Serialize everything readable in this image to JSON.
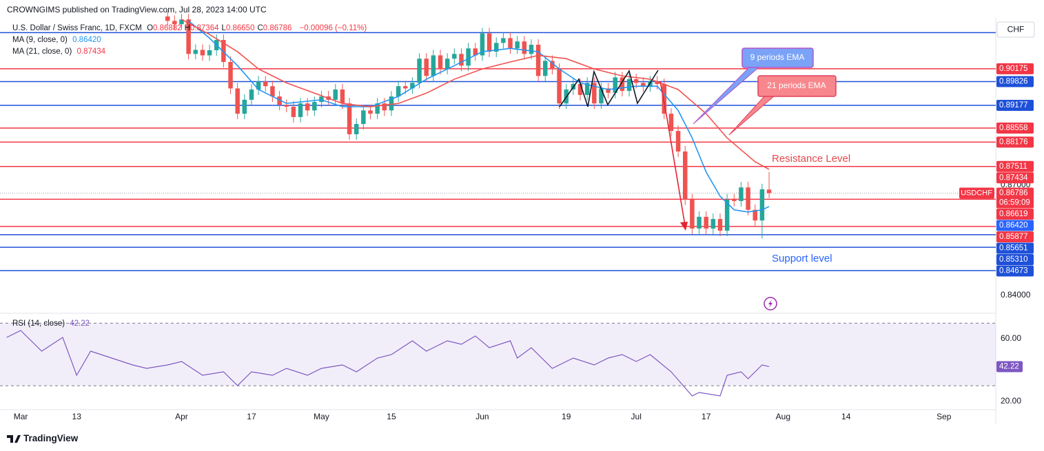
{
  "header": {
    "publisher": "CROWNGIMS published on TradingView.com, Jul 28, 2023 14:00 UTC",
    "currency": "CHF"
  },
  "chart_data": [
    {
      "type": "candlestick",
      "title": "U.S. Dollar / Swiss Franc, 1D, FXCM",
      "ohlc_legend": [
        {
          "key": "O",
          "value": "0.86882"
        },
        {
          "key": "H",
          "value": "0.87364"
        },
        {
          "key": "L",
          "value": "0.86650"
        },
        {
          "key": "C",
          "value": "0.86786"
        }
      ],
      "change": "−0.00096 (−0.11%)",
      "up_color": "#26a69a",
      "down_color": "#ef5350",
      "xlim": [
        -2.96,
        139.41
      ],
      "ylim": [
        0.8351,
        0.9158
      ],
      "yticks": [
        {
          "value": 0.84,
          "label": "0.84000"
        },
        {
          "value": 0.87,
          "label": "0.87000"
        }
      ],
      "xticks": [
        {
          "value": 0,
          "label": "Mar"
        },
        {
          "value": 8,
          "label": "13"
        },
        {
          "value": 23,
          "label": "Apr"
        },
        {
          "value": 33,
          "label": "17"
        },
        {
          "value": 43,
          "label": "May"
        },
        {
          "value": 53,
          "label": "15"
        },
        {
          "value": 66,
          "label": "Jun"
        },
        {
          "value": 78,
          "label": "19"
        },
        {
          "value": 88,
          "label": "Jul"
        },
        {
          "value": 98,
          "label": "17"
        },
        {
          "value": 109,
          "label": "Aug"
        },
        {
          "value": 118,
          "label": "14"
        },
        {
          "value": 132,
          "label": "Sep"
        }
      ],
      "x": [
        21,
        22,
        23,
        24,
        25,
        26,
        27,
        28,
        29,
        30,
        31,
        32,
        33,
        34,
        35,
        36,
        37,
        38,
        39,
        40,
        41,
        42,
        43,
        44,
        45,
        46,
        47,
        48,
        49,
        50,
        51,
        52,
        53,
        54,
        55,
        56,
        57,
        58,
        59,
        60,
        61,
        62,
        63,
        64,
        65,
        66,
        67,
        68,
        69,
        70,
        71,
        72,
        73,
        74,
        75,
        76,
        77,
        78,
        79,
        80,
        81,
        82,
        83,
        84,
        85,
        86,
        87,
        88,
        89,
        90,
        91,
        92,
        93,
        94,
        95,
        96,
        97,
        98,
        99,
        100,
        101,
        102,
        103,
        104,
        105,
        106,
        107
      ],
      "open": [
        0.916,
        0.9148,
        0.9139,
        0.9152,
        0.9058,
        0.9069,
        0.9054,
        0.9068,
        0.9096,
        0.9036,
        0.8964,
        0.8895,
        0.8933,
        0.8961,
        0.8983,
        0.897,
        0.8942,
        0.8919,
        0.8914,
        0.8886,
        0.8923,
        0.8904,
        0.8927,
        0.8942,
        0.8933,
        0.8961,
        0.8923,
        0.8839,
        0.8867,
        0.8904,
        0.8895,
        0.8923,
        0.8904,
        0.8942,
        0.897,
        0.8964,
        0.8979,
        0.9045,
        0.8998,
        0.9054,
        0.9017,
        0.9045,
        0.9058,
        0.9026,
        0.9073,
        0.9054,
        0.9114,
        0.9064,
        0.9088,
        0.9101,
        0.9073,
        0.9092,
        0.9058,
        0.9083,
        0.8998,
        0.9039,
        0.9017,
        0.8923,
        0.8961,
        0.8976,
        0.8946,
        0.8979,
        0.8923,
        0.8964,
        0.8952,
        0.8994,
        0.8957,
        0.8989,
        0.8979,
        0.897,
        0.8983,
        0.8976,
        0.8895,
        0.8848,
        0.8792,
        0.8661,
        0.8582,
        0.8614,
        0.8582,
        0.8608,
        0.8576,
        0.8661,
        0.8657,
        0.8694,
        0.8633,
        0.8604,
        0.86882
      ],
      "high": [
        0.9175,
        0.9163,
        0.9167,
        0.9167,
        0.9084,
        0.9084,
        0.9083,
        0.9111,
        0.9111,
        0.9051,
        0.8979,
        0.8948,
        0.8976,
        0.8998,
        0.8998,
        0.8985,
        0.8957,
        0.8934,
        0.8929,
        0.8938,
        0.8938,
        0.8942,
        0.8957,
        0.8957,
        0.8976,
        0.8976,
        0.8938,
        0.8882,
        0.8919,
        0.8919,
        0.8938,
        0.8938,
        0.8957,
        0.8985,
        0.8985,
        0.8994,
        0.906,
        0.906,
        0.9069,
        0.9069,
        0.906,
        0.9073,
        0.9073,
        0.9088,
        0.9088,
        0.9129,
        0.9129,
        0.9103,
        0.9116,
        0.9116,
        0.9107,
        0.9107,
        0.9098,
        0.9098,
        0.9054,
        0.9054,
        0.9032,
        0.8976,
        0.8991,
        0.8991,
        0.8994,
        0.8994,
        0.8979,
        0.8979,
        0.9009,
        0.9009,
        0.9004,
        0.9004,
        0.8994,
        0.8998,
        0.8998,
        0.8991,
        0.891,
        0.8863,
        0.8807,
        0.8676,
        0.8629,
        0.8629,
        0.8623,
        0.8623,
        0.8676,
        0.8676,
        0.8709,
        0.8709,
        0.8648,
        0.8704,
        0.87364
      ],
      "low": [
        0.9133,
        0.9124,
        0.9124,
        0.9043,
        0.9043,
        0.9039,
        0.9039,
        0.9053,
        0.9021,
        0.8949,
        0.888,
        0.888,
        0.8918,
        0.8946,
        0.8955,
        0.8927,
        0.8904,
        0.8899,
        0.8871,
        0.8871,
        0.8889,
        0.8889,
        0.8912,
        0.8918,
        0.8918,
        0.8908,
        0.8824,
        0.8824,
        0.8852,
        0.888,
        0.888,
        0.8889,
        0.8889,
        0.8927,
        0.8949,
        0.8949,
        0.8964,
        0.8983,
        0.8983,
        0.9002,
        0.9002,
        0.903,
        0.9011,
        0.9011,
        0.9039,
        0.9039,
        0.9049,
        0.9049,
        0.9073,
        0.9058,
        0.9058,
        0.9043,
        0.9043,
        0.8983,
        0.8983,
        0.9002,
        0.8908,
        0.8908,
        0.8946,
        0.8931,
        0.8931,
        0.8908,
        0.8908,
        0.8937,
        0.8937,
        0.8942,
        0.8942,
        0.8964,
        0.8955,
        0.8955,
        0.8961,
        0.888,
        0.8833,
        0.8777,
        0.8646,
        0.8567,
        0.8567,
        0.8567,
        0.8567,
        0.8561,
        0.8561,
        0.8642,
        0.8642,
        0.8618,
        0.8589,
        0.8555,
        0.8665
      ],
      "close": [
        0.9148,
        0.9139,
        0.9152,
        0.9058,
        0.9069,
        0.9054,
        0.9068,
        0.9096,
        0.9036,
        0.8964,
        0.8895,
        0.8933,
        0.8961,
        0.8983,
        0.897,
        0.8942,
        0.8919,
        0.8914,
        0.8886,
        0.8923,
        0.8904,
        0.8927,
        0.8942,
        0.8933,
        0.8961,
        0.8923,
        0.8839,
        0.8867,
        0.8904,
        0.8895,
        0.8923,
        0.8904,
        0.8942,
        0.897,
        0.8964,
        0.8979,
        0.9045,
        0.8998,
        0.9054,
        0.9017,
        0.9045,
        0.9058,
        0.9026,
        0.9073,
        0.9054,
        0.9114,
        0.9064,
        0.9088,
        0.9101,
        0.9073,
        0.9092,
        0.9058,
        0.9083,
        0.8998,
        0.9039,
        0.9017,
        0.8923,
        0.8961,
        0.8976,
        0.8946,
        0.8979,
        0.8923,
        0.8964,
        0.8952,
        0.8994,
        0.8957,
        0.8989,
        0.8979,
        0.897,
        0.8983,
        0.8976,
        0.8895,
        0.8848,
        0.8792,
        0.8661,
        0.8582,
        0.8614,
        0.8582,
        0.8608,
        0.8576,
        0.8661,
        0.8657,
        0.8694,
        0.8633,
        0.8604,
        0.8689,
        0.86786
      ],
      "series": [
        {
          "name": "MA (9, close, 0)",
          "color": "#2196f3",
          "value_label": "0.86420",
          "x": [
            24,
            27,
            31,
            34,
            38,
            43,
            46,
            50,
            54,
            58,
            62,
            66,
            70,
            74,
            77,
            80,
            84,
            88,
            91,
            94,
            96,
            98,
            100,
            102,
            104,
            106,
            107
          ],
          "values": [
            0.9148,
            0.9101,
            0.9026,
            0.8961,
            0.8923,
            0.8933,
            0.8914,
            0.8914,
            0.8942,
            0.8989,
            0.9026,
            0.9064,
            0.9073,
            0.9064,
            0.9017,
            0.8979,
            0.8961,
            0.897,
            0.897,
            0.8904,
            0.8829,
            0.8736,
            0.867,
            0.8633,
            0.8627,
            0.8633,
            0.8642
          ]
        },
        {
          "name": "MA (21, close, 0)",
          "color": "#f0524f",
          "value_label": "0.87434",
          "x": [
            23,
            27,
            31,
            34,
            38,
            42,
            46,
            50,
            54,
            58,
            62,
            66,
            70,
            74,
            78,
            82,
            86,
            90,
            94,
            98,
            101,
            105,
            107
          ],
          "values": [
            0.9152,
            0.9111,
            0.9064,
            0.9017,
            0.8979,
            0.8951,
            0.8923,
            0.8914,
            0.8923,
            0.8951,
            0.8989,
            0.9017,
            0.9036,
            0.9054,
            0.9045,
            0.9017,
            0.8998,
            0.8989,
            0.8961,
            0.8895,
            0.8829,
            0.8764,
            0.87434
          ]
        }
      ],
      "levels": [
        {
          "value": 0.9116,
          "color": "#1e50d8"
        },
        {
          "value": 0.90175,
          "label": "0.90175",
          "color": "#f23645"
        },
        {
          "value": 0.89826,
          "label": "0.89826",
          "color": "#1e50d8"
        },
        {
          "value": 0.89177,
          "label": "0.89177",
          "color": "#1e50d8"
        },
        {
          "value": 0.88558,
          "label": "0.88558",
          "color": "#f23645"
        },
        {
          "value": 0.88176,
          "label": "0.88176",
          "color": "#f23645"
        },
        {
          "value": 0.87511,
          "label": "0.87511",
          "color": "#f23645"
        },
        {
          "value": 0.86619,
          "label": "0.86619",
          "color": "#f23645"
        },
        {
          "value": 0.85877,
          "label": "0.85877",
          "color": "#f23645"
        },
        {
          "value": 0.85651,
          "label": "0.85651",
          "color": "#1e50d8"
        },
        {
          "value": 0.8531,
          "label": "0.85310",
          "color": "#1e50d8"
        },
        {
          "value": 0.84673,
          "label": "0.84673",
          "color": "#1e50d8"
        }
      ],
      "price_tag": {
        "symbol": "USDCHF",
        "value": 0.86786,
        "label": "0.86786",
        "countdown": "06:59:09",
        "color": "#f23645"
      },
      "annotations": [
        "9 periods EMA",
        "21 periods EMA",
        "Resistance Level",
        "Support level"
      ]
    },
    {
      "type": "line",
      "name": "RSI (14, close)",
      "value_label": "42.22",
      "color": "#7e57c2",
      "xlim": [
        -2.96,
        139.41
      ],
      "ylim": [
        14.7,
        76.3
      ],
      "yticks": [
        {
          "value": 20,
          "label": "20.00"
        },
        {
          "value": 60,
          "label": "60.00"
        }
      ],
      "bands": [
        30,
        70
      ],
      "x": [
        -2,
        0,
        1,
        3,
        6,
        8,
        10,
        13,
        16,
        18,
        21,
        23,
        26,
        29,
        31,
        33,
        36,
        38,
        41,
        43,
        46,
        48,
        51,
        53,
        56,
        58,
        61,
        63,
        65,
        67,
        70,
        71,
        73,
        76,
        79,
        82,
        84,
        86,
        88,
        90,
        93,
        96,
        97,
        100,
        101,
        103,
        104,
        106,
        107
      ],
      "values": [
        60.9,
        65.3,
        60.9,
        52.1,
        60.9,
        36.7,
        52.1,
        47.7,
        43.3,
        41.1,
        43.3,
        45.5,
        36.7,
        38.9,
        30.1,
        38.9,
        36.7,
        41.1,
        36.7,
        41.1,
        43.3,
        38.9,
        47.7,
        49.9,
        58.7,
        52.1,
        58.7,
        56.5,
        61.8,
        54.3,
        58.7,
        47.7,
        54.3,
        41.1,
        47.7,
        43.3,
        47.7,
        49.9,
        45.5,
        49.9,
        38.9,
        23.5,
        25.7,
        23.5,
        36.7,
        38.9,
        34.5,
        43.3,
        42.22
      ]
    }
  ],
  "footer": {
    "brand": "TradingView"
  }
}
